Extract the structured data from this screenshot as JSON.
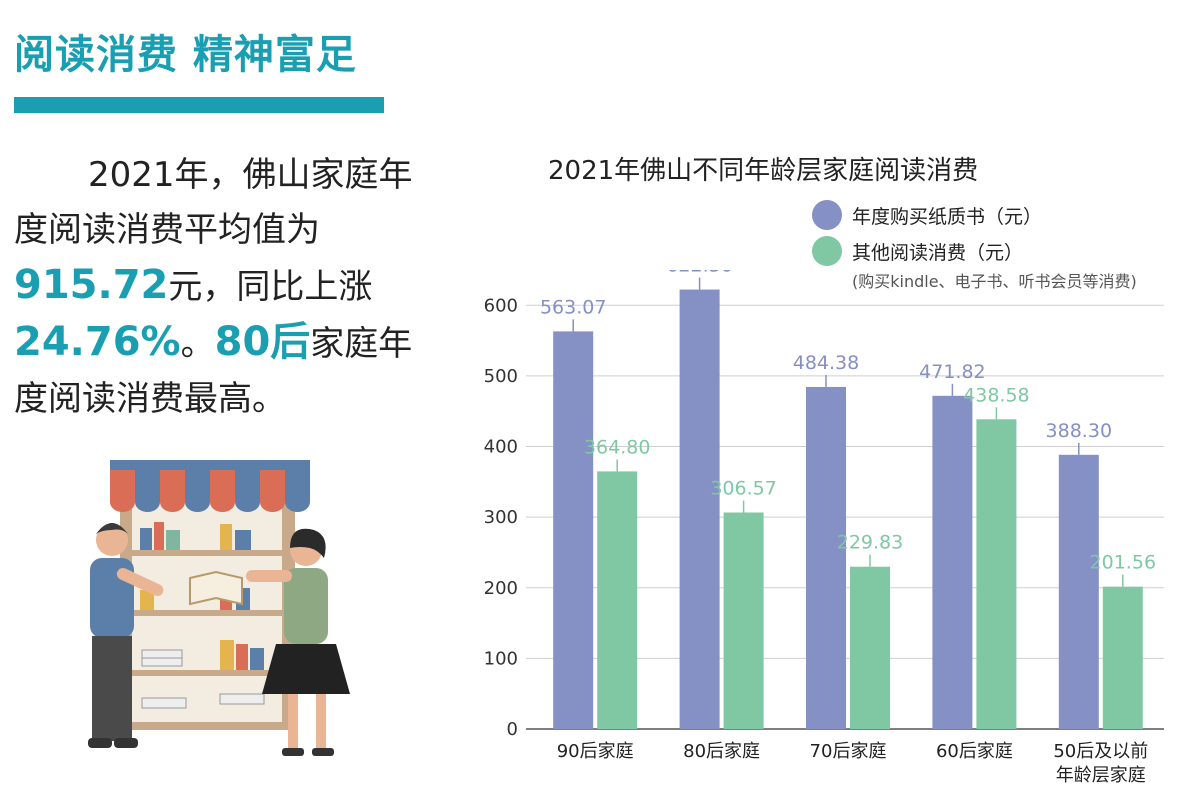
{
  "headline": "阅读消费 精神富足",
  "summary": {
    "p1": "2021年，佛山家庭年度阅读消费平均值为",
    "avg_value": "915.72",
    "p2": "元，同比上涨",
    "growth": "24.76%",
    "p3": "。",
    "top_group": "80后",
    "p4": "家庭年度阅读消费最高。"
  },
  "colors": {
    "accent": "#1a9fb2",
    "paper": "#8590c4",
    "other": "#80c8a3"
  },
  "chart_data": {
    "type": "bar",
    "title": "2021年佛山不同年龄层家庭阅读消费",
    "categories": [
      "90后家庭",
      "80后家庭",
      "70后家庭",
      "60后家庭",
      "50后及以前\n年龄层家庭"
    ],
    "series": [
      {
        "name": "年度购买纸质书（元）",
        "values": [
          563.07,
          622.3,
          484.38,
          471.82,
          388.3
        ]
      },
      {
        "name": "其他阅读消费（元）",
        "values": [
          364.8,
          306.57,
          229.83,
          438.58,
          201.56
        ]
      }
    ],
    "series_note": "(购买kindle、电子书、听书会员等消费)",
    "yticks": [
      0,
      100,
      200,
      300,
      400,
      500,
      600
    ],
    "ylim": [
      0,
      650
    ],
    "grid": true,
    "legend_position": "top-right"
  }
}
